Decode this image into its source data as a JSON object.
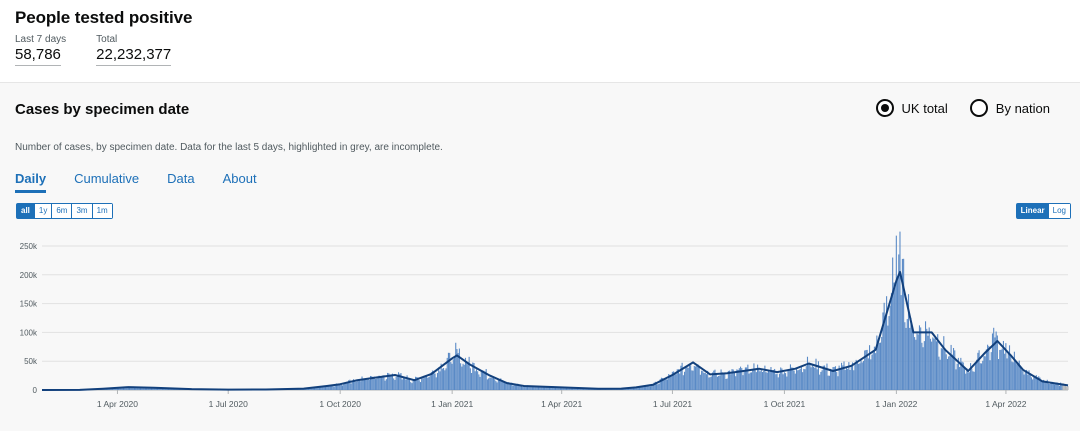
{
  "header": {
    "title": "People tested positive",
    "metrics": [
      {
        "label": "Last 7 days",
        "value": "58,786"
      },
      {
        "label": "Total",
        "value": "22,232,377"
      }
    ]
  },
  "card": {
    "title": "Cases by specimen date",
    "radios": [
      {
        "label": "UK total",
        "checked": true
      },
      {
        "label": "By nation",
        "checked": false
      }
    ],
    "description": "Number of cases, by specimen date. Data for the last 5 days, highlighted in grey, are incomplete.",
    "tabs": [
      "Daily",
      "Cumulative",
      "Data",
      "About"
    ],
    "active_tab": "Daily",
    "range_buttons": [
      "all",
      "1y",
      "6m",
      "3m",
      "1m"
    ],
    "active_range": "all",
    "scale_buttons": [
      "Linear",
      "Log"
    ],
    "active_scale": "Linear"
  },
  "colors": {
    "bar": "#5a8ac6",
    "line": "#12407c",
    "incomplete": "#b1b4b6",
    "accent": "#1d70b8"
  },
  "chart_data": {
    "type": "bar",
    "ylim": [
      0,
      280000
    ],
    "yticks": [
      0,
      50000,
      100000,
      150000,
      200000,
      250000
    ],
    "ytick_labels": [
      "0",
      "50k",
      "100k",
      "150k",
      "200k",
      "250k"
    ],
    "xticks": [
      "2020-04-01",
      "2020-07-01",
      "2020-10-01",
      "2021-01-01",
      "2021-04-01",
      "2021-07-01",
      "2021-10-01",
      "2022-01-01",
      "2022-04-01"
    ],
    "xtick_labels": [
      "1 Apr 2020",
      "1 Jul 2020",
      "1 Oct 2020",
      "1 Jan 2021",
      "1 Apr 2021",
      "1 Jul 2021",
      "1 Oct 2021",
      "1 Jan 2022",
      "1 Apr 2022"
    ],
    "start_date": "2020-01-30",
    "end_date": "2022-05-22",
    "incomplete_days": 5,
    "series": [
      {
        "type": "line",
        "points": [
          [
            "2020-01-30",
            0
          ],
          [
            "2020-03-01",
            200
          ],
          [
            "2020-03-20",
            2000
          ],
          [
            "2020-04-10",
            5000
          ],
          [
            "2020-05-01",
            4000
          ],
          [
            "2020-06-01",
            1500
          ],
          [
            "2020-07-01",
            700
          ],
          [
            "2020-08-01",
            900
          ],
          [
            "2020-09-01",
            2500
          ],
          [
            "2020-09-20",
            7000
          ],
          [
            "2020-10-01",
            10000
          ],
          [
            "2020-10-15",
            17000
          ],
          [
            "2020-11-01",
            22000
          ],
          [
            "2020-11-15",
            26000
          ],
          [
            "2020-12-01",
            17000
          ],
          [
            "2020-12-15",
            28000
          ],
          [
            "2021-01-01",
            55000
          ],
          [
            "2021-01-05",
            60000
          ],
          [
            "2021-01-15",
            45000
          ],
          [
            "2021-02-01",
            25000
          ],
          [
            "2021-02-15",
            12000
          ],
          [
            "2021-03-01",
            7000
          ],
          [
            "2021-04-01",
            4500
          ],
          [
            "2021-05-01",
            2300
          ],
          [
            "2021-05-20",
            2500
          ],
          [
            "2021-06-01",
            4500
          ],
          [
            "2021-06-15",
            9000
          ],
          [
            "2021-07-01",
            26000
          ],
          [
            "2021-07-18",
            48000
          ],
          [
            "2021-08-01",
            27000
          ],
          [
            "2021-08-15",
            29000
          ],
          [
            "2021-09-01",
            34000
          ],
          [
            "2021-09-10",
            37000
          ],
          [
            "2021-09-25",
            31000
          ],
          [
            "2021-10-10",
            37000
          ],
          [
            "2021-10-21",
            46000
          ],
          [
            "2021-11-10",
            33000
          ],
          [
            "2021-11-25",
            42000
          ],
          [
            "2021-12-15",
            70000
          ],
          [
            "2022-01-01",
            190000
          ],
          [
            "2022-01-04",
            205000
          ],
          [
            "2022-01-15",
            100000
          ],
          [
            "2022-01-30",
            100000
          ],
          [
            "2022-02-10",
            70000
          ],
          [
            "2022-03-01",
            33000
          ],
          [
            "2022-03-15",
            65000
          ],
          [
            "2022-03-25",
            85000
          ],
          [
            "2022-04-05",
            60000
          ],
          [
            "2022-04-15",
            35000
          ],
          [
            "2022-05-01",
            15000
          ],
          [
            "2022-05-22",
            8000
          ]
        ]
      }
    ]
  }
}
